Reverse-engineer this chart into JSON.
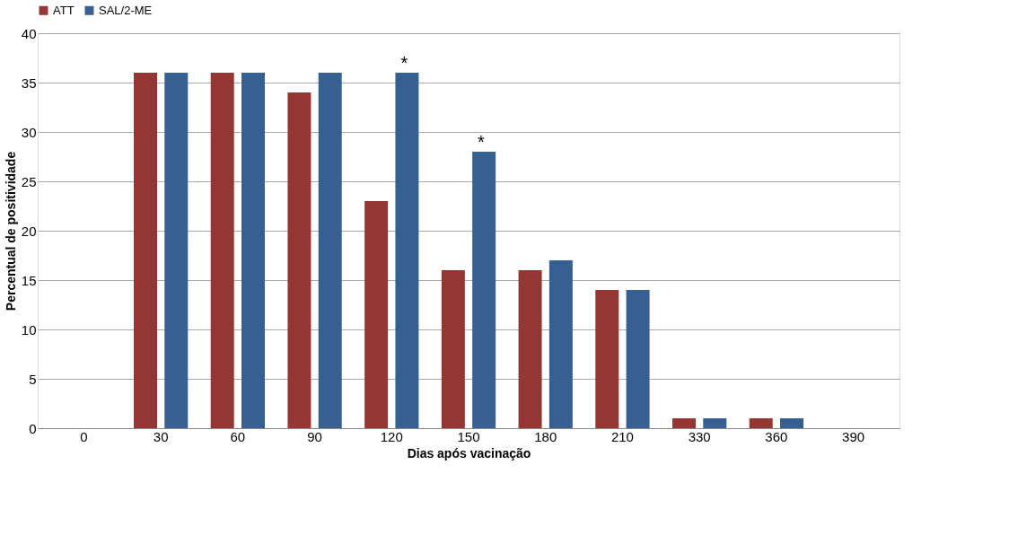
{
  "chart_data": {
    "type": "bar",
    "xlabel": "Dias após vacinação",
    "ylabel": "Percentual de positividade",
    "categories": [
      "0",
      "30",
      "60",
      "90",
      "120",
      "150",
      "180",
      "210",
      "330",
      "360",
      "390"
    ],
    "series": [
      {
        "name": "ATT",
        "color": "#943634",
        "values": [
          0,
          36,
          36,
          34,
          23,
          16,
          16,
          14,
          1,
          1,
          0
        ]
      },
      {
        "name": "SAL/2-ME",
        "color": "#376092",
        "values": [
          0,
          36,
          36,
          36,
          36,
          28,
          17,
          14,
          1,
          1,
          0
        ]
      }
    ],
    "ylim": [
      0,
      40
    ],
    "yticks": [
      0,
      5,
      10,
      15,
      20,
      25,
      30,
      35,
      40
    ],
    "grid": "y",
    "legend": "top",
    "annotations": [
      {
        "text": "*",
        "x": "120",
        "y": 36
      },
      {
        "text": "*",
        "x": "150",
        "y": 28
      }
    ]
  }
}
